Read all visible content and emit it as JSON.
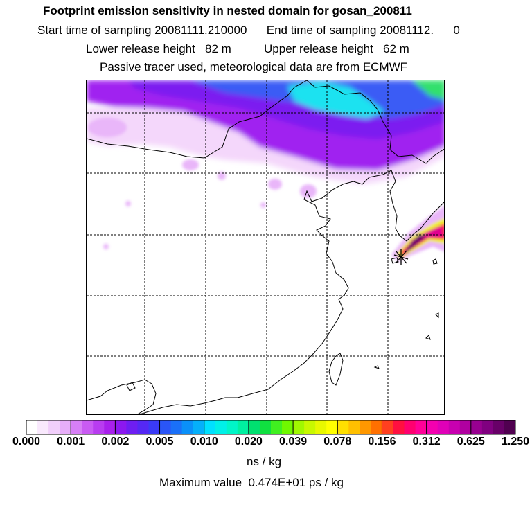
{
  "title": "Footprint emission sensitivity in nested domain for gosan_200811",
  "sampling_line": "Start time of sampling 20081111.210000      End time of sampling 20081112.      0",
  "release_line": "Lower release height   82 m          Upper release height   62 m",
  "tracer_line": "Passive tracer used, meteorological data are from ECMWF",
  "colorbar": {
    "tick_labels": [
      "0.000",
      "0.001",
      "0.002",
      "0.005",
      "0.010",
      "0.020",
      "0.039",
      "0.078",
      "0.156",
      "0.312",
      "0.625",
      "1.250"
    ],
    "colors": [
      "#ffffff",
      "#f9e9fd",
      "#f1cffb",
      "#e7aef9",
      "#d77ff6",
      "#c95bf3",
      "#b83cf0",
      "#a820ec",
      "#8c18f0",
      "#6e1ef2",
      "#5528f4",
      "#3a3af6",
      "#2a55f7",
      "#1a70f8",
      "#0a90f9",
      "#05b0fa",
      "#00e0ff",
      "#00f0e8",
      "#00f5c8",
      "#00f0a0",
      "#00e070",
      "#10e040",
      "#40f020",
      "#70f800",
      "#a0f800",
      "#c8f800",
      "#e8f800",
      "#ffff00",
      "#ffe000",
      "#ffc000",
      "#ff9800",
      "#ff7000",
      "#ff4020",
      "#ff1040",
      "#ff0070",
      "#ff0098",
      "#f400b0",
      "#e000b8",
      "#c800b0",
      "#b000a0",
      "#980090",
      "#800080",
      "#680068",
      "#500050"
    ],
    "units": "ns / kg"
  },
  "max_value": "Maximum value  0.474E+01 ps / kg",
  "map": {
    "gridline_style": "dashed",
    "receptor_marker": "star-icon",
    "footprint_colors": {
      "light": "#f4d7fb",
      "light2": "#e9b6f9",
      "medium": "#cf6ef5",
      "purple": "#a020f0",
      "violet": "#7b1ef0",
      "blue": "#3a5cf5",
      "cyan": "#1ee2f0",
      "green": "#32e06c",
      "yellow": "#f0f020",
      "red": "#ff2050",
      "magenta": "#e00090",
      "dark": "#70006a"
    }
  }
}
